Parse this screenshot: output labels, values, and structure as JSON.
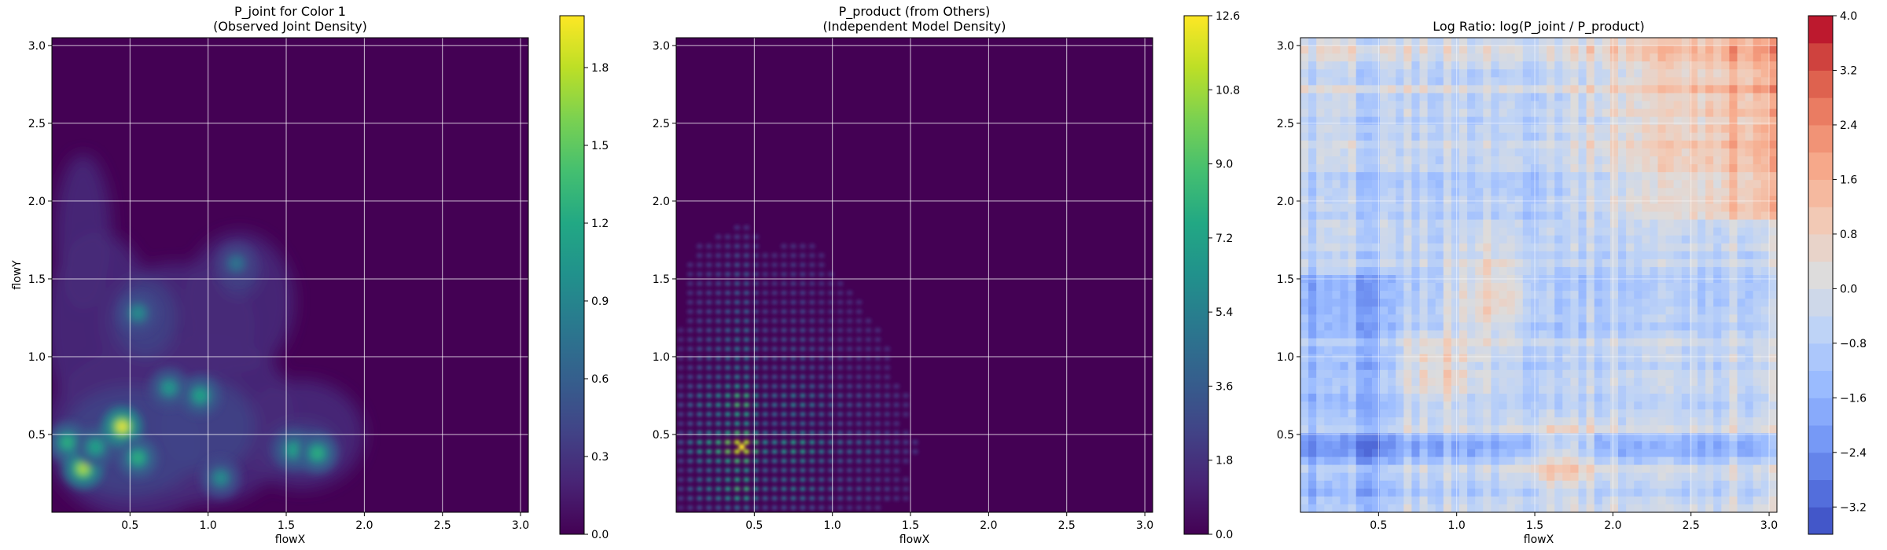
{
  "chart_data": [
    {
      "type": "heatmap",
      "title": "P_joint for Color 1\n(Observed Joint Density)",
      "xlabel": "flowX",
      "ylabel": "flowY",
      "xlim": [
        0.0,
        3.05
      ],
      "ylim": [
        0.0,
        3.05
      ],
      "xticks": [
        "0.5",
        "1.0",
        "1.5",
        "2.0",
        "2.5",
        "3.0"
      ],
      "yticks": [
        "0.5",
        "1.0",
        "1.5",
        "2.0",
        "2.5",
        "3.0"
      ],
      "grid": true,
      "colormap": "viridis",
      "colorbar": {
        "range": [
          0.0,
          2.0
        ],
        "ticks": [
          "0.0",
          "0.3",
          "0.6",
          "0.9",
          "1.2",
          "1.5",
          "1.8"
        ],
        "levels": 20
      },
      "hotspots": [
        {
          "x": 0.1,
          "y": 0.45,
          "value": 1.3
        },
        {
          "x": 0.2,
          "y": 0.28,
          "value": 1.8
        },
        {
          "x": 0.28,
          "y": 0.42,
          "value": 1.2
        },
        {
          "x": 0.45,
          "y": 0.55,
          "value": 2.0
        },
        {
          "x": 0.55,
          "y": 0.35,
          "value": 1.3
        },
        {
          "x": 0.55,
          "y": 1.28,
          "value": 1.0
        },
        {
          "x": 0.75,
          "y": 0.8,
          "value": 1.1
        },
        {
          "x": 0.95,
          "y": 0.75,
          "value": 1.2
        },
        {
          "x": 1.08,
          "y": 0.22,
          "value": 1.0
        },
        {
          "x": 1.55,
          "y": 0.4,
          "value": 1.2
        },
        {
          "x": 1.7,
          "y": 0.38,
          "value": 1.3
        },
        {
          "x": 1.18,
          "y": 1.6,
          "value": 0.8
        }
      ]
    },
    {
      "type": "heatmap",
      "title": "P_product (from Others)\n(Independent Model Density)",
      "xlabel": "flowX",
      "ylabel": "",
      "xlim": [
        0.0,
        3.05
      ],
      "ylim": [
        0.0,
        3.05
      ],
      "xticks": [
        "0.5",
        "1.0",
        "1.5",
        "2.0",
        "2.5",
        "3.0"
      ],
      "yticks": [
        "0.5",
        "1.0",
        "1.5",
        "2.0",
        "2.5",
        "3.0"
      ],
      "grid": true,
      "colormap": "viridis",
      "colorbar": {
        "range": [
          0.0,
          12.6
        ],
        "ticks": [
          "0.0",
          "1.8",
          "3.6",
          "5.4",
          "7.2",
          "9.0",
          "10.8",
          "12.6"
        ],
        "levels": 20
      },
      "peak": {
        "x": 0.42,
        "y": 0.42,
        "value": 12.6
      }
    },
    {
      "type": "heatmap",
      "title": "Log Ratio: log(P_joint / P_product)",
      "xlabel": "flowX",
      "ylabel": "",
      "xlim": [
        0.0,
        3.05
      ],
      "ylim": [
        0.0,
        3.05
      ],
      "xticks": [
        "0.5",
        "1.0",
        "1.5",
        "2.0",
        "2.5",
        "3.0"
      ],
      "yticks": [
        "0.5",
        "1.0",
        "1.5",
        "2.0",
        "2.5",
        "3.0"
      ],
      "grid": true,
      "colormap": "coolwarm",
      "colorbar": {
        "range": [
          -3.6,
          4.0
        ],
        "ticks": [
          "4.0",
          "3.2",
          "2.4",
          "1.6",
          "0.8",
          "0.0",
          "−0.8",
          "−1.6",
          "−2.4",
          "−3.2"
        ],
        "levels": 19
      }
    }
  ]
}
